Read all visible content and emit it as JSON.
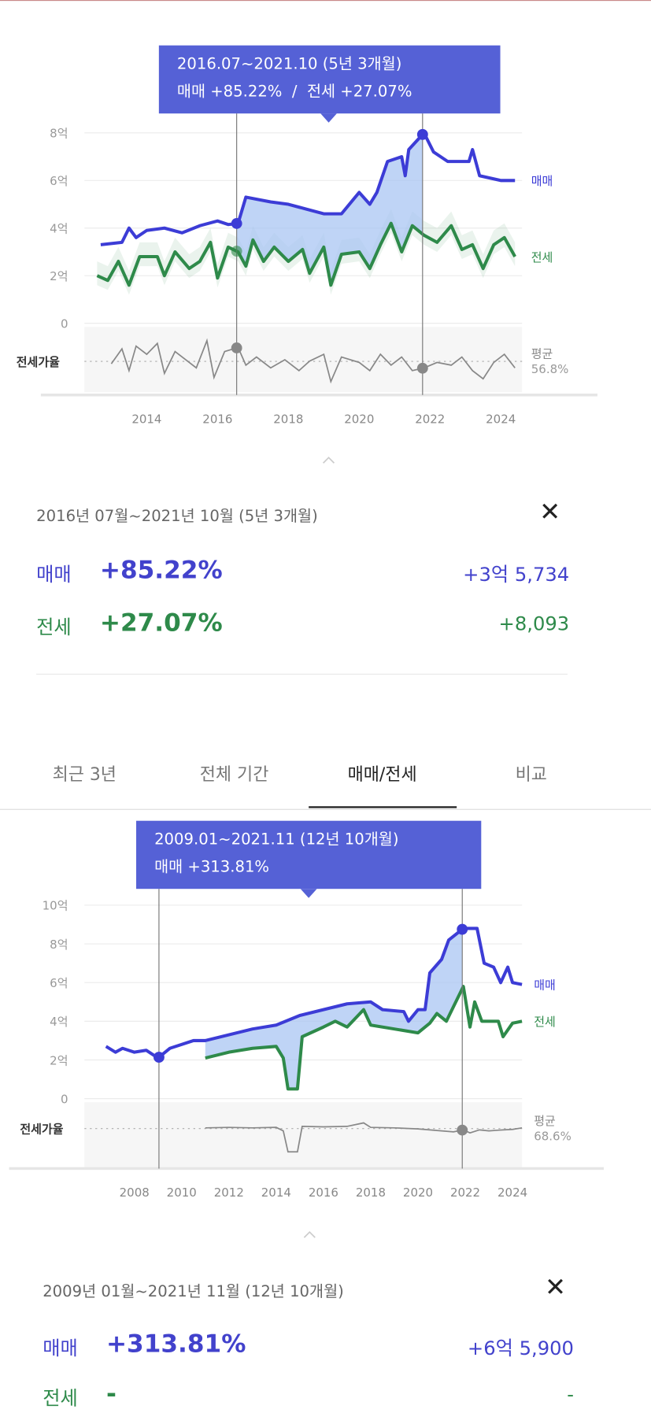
{
  "colors": {
    "sale": "#3c3cd6",
    "jeonse": "#2e8a4a",
    "tooltip": "#5561d6",
    "ratio": "#888888",
    "fill": "#a9c6f3"
  },
  "chart1": {
    "tooltip": {
      "range": "2016.07~2021.10 (5년 3개월)",
      "line2": "매매 +85.22%  /  전세 +27.07%"
    },
    "series_labels": {
      "sale": "매매",
      "jeonse": "전세"
    },
    "ratio_label": "전세가율",
    "avg_label": "평균",
    "avg_value": "56.8%",
    "icon": "caret-up-icon"
  },
  "chart2": {
    "tooltip": {
      "range": "2009.01~2021.11 (12년 10개월)",
      "line2": "매매 +313.81%"
    },
    "series_labels": {
      "sale": "매매",
      "jeonse": "전세"
    },
    "ratio_label": "전세가율",
    "avg_label": "평균",
    "avg_value": "68.6%"
  },
  "chart_data": [
    {
      "type": "line",
      "title": "",
      "xlabel": "",
      "ylabel": "",
      "x_ticks": [
        "2014",
        "2016",
        "2018",
        "2020",
        "2022",
        "2024"
      ],
      "y_ticks": [
        "8억",
        "6억",
        "4억",
        "2억",
        "0"
      ],
      "ylim": [
        0,
        8
      ],
      "unit": "억",
      "selection": [
        "2016.07",
        "2021.10"
      ],
      "series": [
        {
          "name": "매매",
          "points": [
            [
              2012.7,
              3.3
            ],
            [
              2013.3,
              3.4
            ],
            [
              2013.5,
              4.0
            ],
            [
              2013.7,
              3.6
            ],
            [
              2014,
              3.9
            ],
            [
              2014.5,
              4.0
            ],
            [
              2015,
              3.8
            ],
            [
              2015.5,
              4.1
            ],
            [
              2016,
              4.3
            ],
            [
              2016.3,
              4.15
            ],
            [
              2016.58,
              4.2
            ],
            [
              2016.8,
              5.3
            ],
            [
              2017.5,
              5.1
            ],
            [
              2018,
              5.0
            ],
            [
              2018.5,
              4.8
            ],
            [
              2019,
              4.6
            ],
            [
              2019.5,
              4.6
            ],
            [
              2020,
              5.5
            ],
            [
              2020.3,
              5.0
            ],
            [
              2020.5,
              5.5
            ],
            [
              2020.8,
              6.8
            ],
            [
              2021.2,
              7.0
            ],
            [
              2021.3,
              6.2
            ],
            [
              2021.4,
              7.3
            ],
            [
              2021.83,
              8.0
            ],
            [
              2022.1,
              7.2
            ],
            [
              2022.5,
              6.8
            ],
            [
              2023.1,
              6.8
            ],
            [
              2023.2,
              7.3
            ],
            [
              2023.4,
              6.2
            ],
            [
              2024,
              6.0
            ],
            [
              2024.4,
              6.0
            ]
          ]
        },
        {
          "name": "전세",
          "points": [
            [
              2012.6,
              2.0
            ],
            [
              2012.9,
              1.8
            ],
            [
              2013.2,
              2.6
            ],
            [
              2013.5,
              1.6
            ],
            [
              2013.8,
              2.8
            ],
            [
              2014.3,
              2.8
            ],
            [
              2014.5,
              2.0
            ],
            [
              2014.8,
              3.0
            ],
            [
              2015.2,
              2.3
            ],
            [
              2015.5,
              2.6
            ],
            [
              2015.8,
              3.4
            ],
            [
              2016,
              1.9
            ],
            [
              2016.3,
              3.2
            ],
            [
              2016.58,
              3.0
            ],
            [
              2016.8,
              2.4
            ],
            [
              2017,
              3.5
            ],
            [
              2017.3,
              2.6
            ],
            [
              2017.6,
              3.2
            ],
            [
              2018,
              2.6
            ],
            [
              2018.4,
              3.1
            ],
            [
              2018.6,
              2.1
            ],
            [
              2019,
              3.2
            ],
            [
              2019.2,
              1.6
            ],
            [
              2019.5,
              2.9
            ],
            [
              2020,
              3.0
            ],
            [
              2020.3,
              2.3
            ],
            [
              2020.6,
              3.3
            ],
            [
              2020.9,
              4.2
            ],
            [
              2021.2,
              3.0
            ],
            [
              2021.5,
              4.1
            ],
            [
              2021.83,
              3.7
            ],
            [
              2022.2,
              3.4
            ],
            [
              2022.6,
              4.1
            ],
            [
              2022.9,
              3.1
            ],
            [
              2023.2,
              3.3
            ],
            [
              2023.5,
              2.3
            ],
            [
              2023.8,
              3.3
            ],
            [
              2024.1,
              3.6
            ],
            [
              2024.4,
              2.8
            ]
          ]
        },
        {
          "name": "전세가율",
          "avg": 56.8,
          "points": [
            [
              2013,
              55
            ],
            [
              2013.3,
              66
            ],
            [
              2013.5,
              50
            ],
            [
              2013.7,
              68
            ],
            [
              2014,
              62
            ],
            [
              2014.3,
              70
            ],
            [
              2014.5,
              48
            ],
            [
              2014.8,
              64
            ],
            [
              2015.1,
              58
            ],
            [
              2015.4,
              52
            ],
            [
              2015.7,
              72
            ],
            [
              2015.9,
              45
            ],
            [
              2016.2,
              64
            ],
            [
              2016.58,
              67
            ],
            [
              2016.8,
              54
            ],
            [
              2017.1,
              60
            ],
            [
              2017.5,
              52
            ],
            [
              2017.9,
              58
            ],
            [
              2018.3,
              50
            ],
            [
              2018.6,
              57
            ],
            [
              2019,
              62
            ],
            [
              2019.2,
              42
            ],
            [
              2019.5,
              60
            ],
            [
              2020,
              56
            ],
            [
              2020.3,
              50
            ],
            [
              2020.6,
              62
            ],
            [
              2020.9,
              54
            ],
            [
              2021.2,
              60
            ],
            [
              2021.5,
              50
            ],
            [
              2021.83,
              52
            ],
            [
              2022.2,
              56
            ],
            [
              2022.6,
              54
            ],
            [
              2022.9,
              60
            ],
            [
              2023.2,
              50
            ],
            [
              2023.5,
              44
            ],
            [
              2023.8,
              56
            ],
            [
              2024.1,
              62
            ],
            [
              2024.4,
              52
            ]
          ]
        }
      ]
    },
    {
      "type": "line",
      "title": "",
      "xlabel": "",
      "ylabel": "",
      "x_ticks": [
        "2008",
        "2010",
        "2012",
        "2014",
        "2016",
        "2018",
        "2020",
        "2022",
        "2024"
      ],
      "y_ticks": [
        "10억",
        "8억",
        "6억",
        "4억",
        "2억",
        "0"
      ],
      "ylim": [
        0,
        10
      ],
      "unit": "억",
      "selection": [
        "2009.01",
        "2021.11"
      ],
      "series": [
        {
          "name": "매매",
          "points": [
            [
              2006.8,
              2.7
            ],
            [
              2007.2,
              2.4
            ],
            [
              2007.5,
              2.6
            ],
            [
              2008,
              2.4
            ],
            [
              2008.5,
              2.5
            ],
            [
              2009.0,
              2.1
            ],
            [
              2009.5,
              2.6
            ],
            [
              2010.5,
              3.0
            ],
            [
              2011,
              3.0
            ],
            [
              2012,
              3.3
            ],
            [
              2013,
              3.6
            ],
            [
              2014,
              3.8
            ],
            [
              2015,
              4.3
            ],
            [
              2016,
              4.6
            ],
            [
              2017,
              4.9
            ],
            [
              2018,
              5.0
            ],
            [
              2018.5,
              4.6
            ],
            [
              2019.4,
              4.5
            ],
            [
              2019.6,
              4.0
            ],
            [
              2020,
              4.6
            ],
            [
              2020.3,
              4.6
            ],
            [
              2020.5,
              6.5
            ],
            [
              2021,
              7.2
            ],
            [
              2021.3,
              8.2
            ],
            [
              2021.92,
              8.8
            ],
            [
              2022.5,
              8.8
            ],
            [
              2022.8,
              7.0
            ],
            [
              2023.2,
              6.8
            ],
            [
              2023.5,
              6.0
            ],
            [
              2023.8,
              6.8
            ],
            [
              2024,
              6.0
            ],
            [
              2024.4,
              5.9
            ]
          ]
        },
        {
          "name": "전세",
          "points": [
            [
              2011,
              2.1
            ],
            [
              2012,
              2.4
            ],
            [
              2013,
              2.6
            ],
            [
              2014,
              2.7
            ],
            [
              2014.3,
              2.1
            ],
            [
              2014.5,
              0.5
            ],
            [
              2014.9,
              0.5
            ],
            [
              2015.1,
              3.2
            ],
            [
              2016,
              3.7
            ],
            [
              2016.5,
              4.0
            ],
            [
              2017,
              3.7
            ],
            [
              2017.7,
              4.6
            ],
            [
              2018,
              3.8
            ],
            [
              2019,
              3.6
            ],
            [
              2020,
              3.4
            ],
            [
              2020.5,
              3.9
            ],
            [
              2020.8,
              4.4
            ],
            [
              2021.2,
              4.0
            ],
            [
              2021.92,
              5.8
            ],
            [
              2022.2,
              3.7
            ],
            [
              2022.4,
              5.0
            ],
            [
              2022.7,
              4.0
            ],
            [
              2023.4,
              4.0
            ],
            [
              2023.6,
              3.2
            ],
            [
              2024,
              3.9
            ],
            [
              2024.4,
              4.0
            ]
          ]
        },
        {
          "name": "전세가율",
          "avg": 68.6,
          "points": [
            [
              2011,
              70
            ],
            [
              2012,
              71
            ],
            [
              2013,
              70
            ],
            [
              2014,
              71
            ],
            [
              2014.3,
              64
            ],
            [
              2014.5,
              22
            ],
            [
              2014.9,
              22
            ],
            [
              2015.1,
              73
            ],
            [
              2016,
              72
            ],
            [
              2017,
              73
            ],
            [
              2017.7,
              80
            ],
            [
              2018,
              71
            ],
            [
              2019,
              70
            ],
            [
              2020,
              68
            ],
            [
              2020.5,
              66
            ],
            [
              2021,
              64
            ],
            [
              2021.5,
              62
            ],
            [
              2021.92,
              66
            ],
            [
              2022.2,
              60
            ],
            [
              2022.6,
              66
            ],
            [
              2023,
              64
            ],
            [
              2023.6,
              66
            ],
            [
              2024,
              67
            ],
            [
              2024.4,
              70
            ]
          ]
        }
      ]
    }
  ],
  "panel1": {
    "title": "2016년 07월~2021년 10월 (5년 3개월)",
    "close": "✕",
    "sale": {
      "label": "매매",
      "pct": "+85.22%",
      "amount": "+3억 5,734"
    },
    "jeonse": {
      "label": "전세",
      "pct": "+27.07%",
      "amount": "+8,093"
    }
  },
  "tabs": [
    {
      "label": "최근 3년"
    },
    {
      "label": "전체 기간"
    },
    {
      "label": "매매/전세",
      "active": true
    },
    {
      "label": "비교"
    }
  ],
  "panel2": {
    "title": "2009년 01월~2021년 11월 (12년 10개월)",
    "close": "✕",
    "sale": {
      "label": "매매",
      "pct": "+313.81%",
      "amount": "+6억 5,900"
    },
    "jeonse": {
      "label": "전세",
      "pct": "-",
      "amount": "-"
    }
  }
}
